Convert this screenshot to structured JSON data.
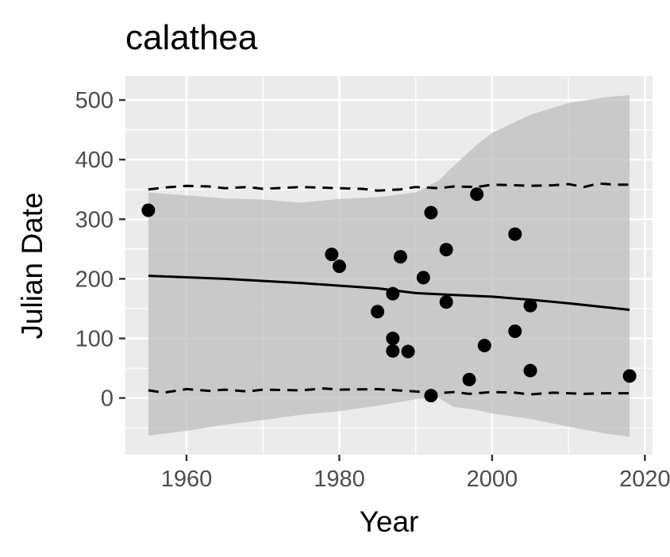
{
  "chart_data": {
    "type": "scatter",
    "title": "calathea",
    "xlabel": "Year",
    "ylabel": "Julian Date",
    "xlim": [
      1952,
      2021
    ],
    "ylim": [
      -95,
      540
    ],
    "x_ticks": [
      1960,
      1980,
      2000,
      2020
    ],
    "y_ticks": [
      0,
      100,
      200,
      300,
      400,
      500
    ],
    "x_tick_labels": [
      "1960",
      "1980",
      "2000",
      "2020"
    ],
    "y_tick_labels": [
      "0",
      "100",
      "200",
      "300",
      "400",
      "500"
    ],
    "grid": true,
    "legend": "none",
    "colors": {
      "panel_background": "#ebebeb",
      "grid_major": "#ffffff",
      "ribbon": "#bebebe",
      "points": "#000000",
      "lines": "#000000"
    },
    "points": [
      {
        "x": 1955,
        "y": 315
      },
      {
        "x": 1979,
        "y": 241
      },
      {
        "x": 1980,
        "y": 221
      },
      {
        "x": 1985,
        "y": 145
      },
      {
        "x": 1987,
        "y": 175
      },
      {
        "x": 1987,
        "y": 100
      },
      {
        "x": 1987,
        "y": 79
      },
      {
        "x": 1988,
        "y": 237
      },
      {
        "x": 1989,
        "y": 78
      },
      {
        "x": 1991,
        "y": 202
      },
      {
        "x": 1992,
        "y": 311
      },
      {
        "x": 1992,
        "y": 4
      },
      {
        "x": 1994,
        "y": 249
      },
      {
        "x": 1994,
        "y": 161
      },
      {
        "x": 1997,
        "y": 31
      },
      {
        "x": 1998,
        "y": 342
      },
      {
        "x": 1999,
        "y": 88
      },
      {
        "x": 2003,
        "y": 275
      },
      {
        "x": 2003,
        "y": 112
      },
      {
        "x": 2005,
        "y": 155
      },
      {
        "x": 2005,
        "y": 46
      },
      {
        "x": 2018,
        "y": 37
      }
    ],
    "fit_line": {
      "x": [
        1955,
        1965,
        1975,
        1985,
        1990,
        1995,
        2000,
        2005,
        2010,
        2018
      ],
      "y": [
        205,
        200,
        193,
        184,
        176,
        173,
        170,
        165,
        159,
        148
      ]
    },
    "ribbon": {
      "x": [
        1955,
        1960,
        1965,
        1970,
        1975,
        1980,
        1985,
        1990,
        1993,
        1995,
        1998,
        2000,
        2005,
        2010,
        2015,
        2018
      ],
      "upper": [
        345,
        340,
        335,
        333,
        328,
        334,
        337,
        345,
        365,
        390,
        425,
        445,
        475,
        495,
        505,
        508
      ],
      "lower": [
        -63,
        -55,
        -45,
        -37,
        -28,
        -22,
        -13,
        -2,
        0,
        -15,
        -20,
        -26,
        -35,
        -48,
        -60,
        -65
      ]
    },
    "upper_dashed": {
      "x": [
        1955,
        1957,
        1960,
        1963,
        1965,
        1968,
        1970,
        1975,
        1980,
        1983,
        1985,
        1988,
        1990,
        1993,
        1995,
        1998,
        2000,
        2003,
        2005,
        2008,
        2010,
        2012,
        2014,
        2016,
        2018
      ],
      "y": [
        350,
        353,
        356,
        355,
        352,
        354,
        351,
        354,
        352,
        351,
        348,
        350,
        354,
        352,
        355,
        354,
        358,
        357,
        356,
        357,
        359,
        354,
        360,
        358,
        358
      ]
    },
    "lower_dashed": {
      "x": [
        1955,
        1957,
        1960,
        1963,
        1965,
        1968,
        1970,
        1975,
        1978,
        1980,
        1985,
        1990,
        1993,
        1995,
        1997,
        2000,
        2003,
        2005,
        2008,
        2010,
        2012,
        2015,
        2018
      ],
      "y": [
        13,
        9,
        15,
        12,
        14,
        11,
        14,
        13,
        16,
        14,
        15,
        11,
        8,
        10,
        7,
        10,
        9,
        6,
        9,
        8,
        7,
        8,
        8
      ]
    }
  }
}
